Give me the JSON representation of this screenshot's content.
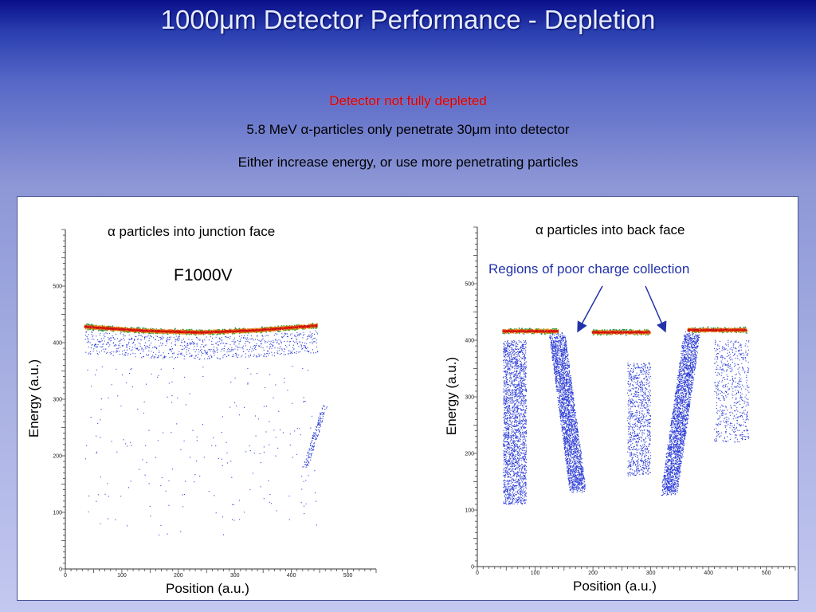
{
  "slide": {
    "title": "1000μm Detector Performance - Depletion",
    "line1": "Detector not fully depleted",
    "line2": "5.8 MeV α-particles only penetrate 30μm into detector",
    "line3": "Either increase energy, or use more penetrating particles"
  },
  "overlay_label": "F1000V",
  "annotation": "Regions of poor charge collection",
  "colors": {
    "accent_blue": "#2233aa",
    "headline_red": "#d40000",
    "band_hot": "#e02010",
    "band_mid": "#2aa040",
    "points": "#2b3cd6"
  },
  "chart_data": [
    {
      "type": "scatter",
      "title": "α particles into junction face",
      "xlabel": "Position (a.u.)",
      "ylabel": "Energy (a.u.)",
      "xlim": [
        0,
        550
      ],
      "ylim": [
        0,
        600
      ],
      "xticks": [
        0,
        100,
        200,
        300,
        400,
        500
      ],
      "yticks": [
        0,
        100,
        200,
        300,
        400,
        500
      ],
      "band": {
        "x": [
          35,
          445
        ],
        "energy": [
          428,
          421,
          418,
          422,
          430
        ],
        "spread": 6
      },
      "tail": {
        "x": [
          425,
          460
        ],
        "energy": [
          180,
          290
        ]
      }
    },
    {
      "type": "scatter",
      "title": "α particles into back face",
      "xlabel": "Position (a.u.)",
      "ylabel": "Energy (a.u.)",
      "xlim": [
        0,
        550
      ],
      "ylim": [
        0,
        600
      ],
      "xticks": [
        0,
        100,
        200,
        300,
        400,
        500
      ],
      "yticks": [
        0,
        100,
        200,
        300,
        400,
        500
      ],
      "band_segments": [
        {
          "x": [
            45,
            140
          ],
          "energy": 416
        },
        {
          "x": [
            200,
            298
          ],
          "energy": 414
        },
        {
          "x": [
            365,
            465
          ],
          "energy": 418
        }
      ],
      "poor_collection_regions": [
        {
          "x": [
            130,
            185
          ],
          "energy_min": 135
        },
        {
          "x": [
            320,
            380
          ],
          "energy_min": 130
        }
      ]
    }
  ]
}
